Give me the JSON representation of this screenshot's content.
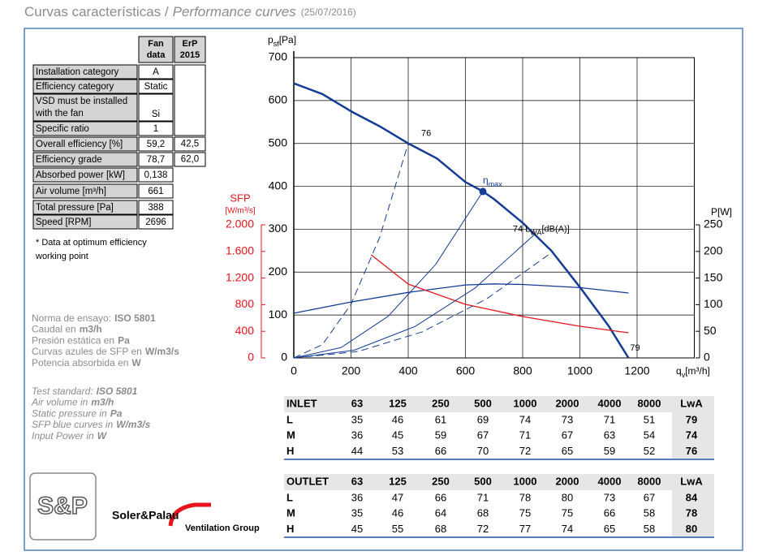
{
  "title": {
    "es": "Curvas características /",
    "en": "Performance curves",
    "date": "(25/07/2016)"
  },
  "fan_table": {
    "headers": [
      [
        "Fan",
        "data"
      ],
      [
        "ErP",
        "2015"
      ]
    ],
    "rows": [
      {
        "label": [
          "Installation category"
        ],
        "value": "A"
      },
      {
        "label": [
          "Efficiency category"
        ],
        "value": "Static"
      },
      {
        "label": [
          "VSD must be installed",
          "with the fan"
        ],
        "value": "Si"
      },
      {
        "label": [
          "Specific ratio"
        ],
        "value": "1"
      },
      {
        "label": [
          "Overall efficiency [%]"
        ],
        "value": "59,2",
        "erp": "42,5"
      },
      {
        "label": [
          "Efficiency grade"
        ],
        "value": "78,7",
        "erp": "62,0"
      },
      {
        "label": [
          "Absorbed power [kW]"
        ],
        "value": "0,138"
      },
      {
        "label": [
          "Air volume [m³/h]"
        ],
        "value": "661"
      },
      {
        "label": [
          "Total pressure [Pa]"
        ],
        "value": "388"
      },
      {
        "label": [
          "Speed [RPM]"
        ],
        "value": "2696"
      }
    ],
    "footnote": [
      "* Data at optimum efficiency",
      "working point"
    ]
  },
  "notes_es": [
    {
      "label": "Norma de ensayo:",
      "value": "ISO 5801"
    },
    {
      "label": "Caudal en",
      "value": "m3/h"
    },
    {
      "label": "Presión estática en",
      "value": "Pa"
    },
    {
      "label": "Curvas azules de SFP en",
      "value": "W/m3/s"
    },
    {
      "label": "Potencia absorbida en",
      "value": "W"
    }
  ],
  "notes_en": [
    {
      "label": "Test standard:",
      "value": "ISO 5801"
    },
    {
      "label": "Air volume in",
      "value": "m3/h"
    },
    {
      "label": "Static pressure in",
      "value": "Pa"
    },
    {
      "label": "SFP blue curves in",
      "value": "W/m3/s"
    },
    {
      "label": "Input Power in",
      "value": "W"
    }
  ],
  "logo": {
    "mark": "S&P",
    "brand": "Soler&Palau",
    "group": "Ventilation Group"
  },
  "chart_data": {
    "type": "line",
    "ylabel": {
      "main": "p",
      "sub": "sf",
      "unit": "[Pa]"
    },
    "xlabel": {
      "main": "q",
      "sub": "v",
      "unit": "[m³/h]"
    },
    "xlim": [
      0,
      1400
    ],
    "xticks": [
      0,
      200,
      400,
      600,
      800,
      1000,
      1200
    ],
    "ylim": [
      0,
      700
    ],
    "yticks": [
      0,
      100,
      200,
      300,
      400,
      500,
      600,
      700
    ],
    "grid": true,
    "y2label": "P[W]",
    "y2lim": [
      0,
      250
    ],
    "y2ticks": [
      0,
      50,
      100,
      150,
      200,
      250
    ],
    "y3label": [
      "SFP",
      "[W/m³/s]"
    ],
    "y3color": "#e8141c",
    "y3lim": [
      0,
      2000
    ],
    "y3ticks": [
      0,
      400,
      800,
      {
        "value": 1200,
        "label": "1.200"
      },
      {
        "value": 1600,
        "label": "1.600"
      },
      {
        "value": 2000,
        "label": "2.000"
      }
    ],
    "series": [
      {
        "color": "#143c94",
        "linewidth": 2.5,
        "x": [
          0,
          100,
          200,
          300,
          400,
          500,
          600,
          661,
          700,
          800,
          900,
          1000,
          1100,
          1170
        ],
        "values": [
          640,
          615,
          575,
          540,
          500,
          465,
          410,
          388,
          370,
          315,
          250,
          165,
          75,
          0
        ]
      },
      {
        "color": "#143c94",
        "linewidth": 1.3,
        "axis": "y2",
        "x": [
          0,
          200,
          400,
          600,
          700,
          800,
          1000,
          1170
        ],
        "values": [
          84,
          105,
          123,
          137,
          139,
          138,
          132,
          122
        ]
      },
      {
        "color": "#e8141c",
        "linewidth": 1.3,
        "axis": "y3",
        "x": [
          270,
          400,
          600,
          800,
          1000,
          1170
        ],
        "values": [
          1550,
          1110,
          805,
          622,
          476,
          378
        ]
      },
      {
        "color": "#143c94",
        "linewidth": 1,
        "style": "dashed",
        "x": [
          0,
          100,
          200,
          300,
          400
        ],
        "values": [
          0,
          31,
          125,
          281,
          500
        ]
      },
      {
        "color": "#143c94",
        "linewidth": 1,
        "x": [
          0,
          165,
          330,
          496,
          661
        ],
        "values": [
          0,
          24,
          97,
          218,
          388
        ]
      },
      {
        "color": "#143c94",
        "linewidth": 1,
        "x": [
          0,
          211,
          423,
          634,
          845
        ],
        "values": [
          0,
          18,
          73,
          163,
          290
        ]
      },
      {
        "color": "#143c94",
        "linewidth": 1,
        "style": "dashed",
        "x": [
          0,
          225,
          450,
          675,
          900
        ],
        "values": [
          0,
          15,
          61,
          138,
          245
        ]
      }
    ],
    "operating_point": {
      "x": 661,
      "y": 388,
      "label": {
        "main": "η",
        "sub": "max"
      }
    },
    "annotations": [
      {
        "x": 400,
        "y": 500,
        "parts": [
          "76"
        ]
      },
      {
        "x": 845,
        "y": 290,
        "parts": [
          "74 L",
          "WA",
          "[dB(A)]"
        ]
      },
      {
        "x": 1170,
        "y": 0,
        "parts": [
          "79"
        ]
      }
    ]
  },
  "octave_tables": [
    {
      "header": [
        "INLET",
        63,
        125,
        250,
        500,
        1000,
        2000,
        4000,
        8000,
        "LwA"
      ],
      "rows": [
        [
          "L",
          35,
          46,
          61,
          69,
          74,
          73,
          71,
          51,
          79
        ],
        [
          "M",
          36,
          45,
          59,
          67,
          71,
          67,
          63,
          54,
          74
        ],
        [
          "H",
          44,
          53,
          66,
          70,
          72,
          65,
          59,
          52,
          76
        ]
      ]
    },
    {
      "header": [
        "OUTLET",
        63,
        125,
        250,
        500,
        1000,
        2000,
        4000,
        8000,
        "LwA"
      ],
      "rows": [
        [
          "L",
          36,
          47,
          66,
          71,
          78,
          80,
          73,
          67,
          84
        ],
        [
          "M",
          35,
          46,
          64,
          68,
          75,
          75,
          66,
          58,
          78
        ],
        [
          "H",
          45,
          55,
          68,
          72,
          77,
          74,
          65,
          58,
          80
        ]
      ]
    }
  ]
}
